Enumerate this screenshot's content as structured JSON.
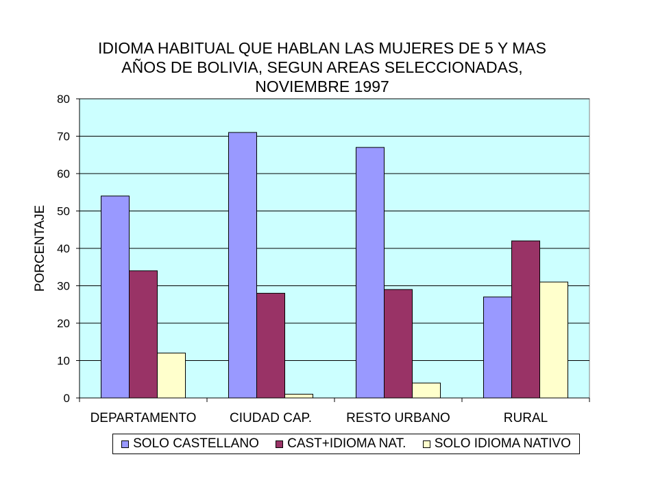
{
  "chart_data": {
    "type": "bar",
    "title": "IDIOMA HABITUAL QUE HABLAN LAS MUJERES DE 5 Y MAS\nAÑOS DE BOLIVIA, SEGUN AREAS SELECCIONADAS,\nNOVIEMBRE 1997",
    "ylabel": "PORCENTAJE",
    "xlabel": "",
    "ylim": [
      0,
      80
    ],
    "yticks": [
      0,
      10,
      20,
      30,
      40,
      50,
      60,
      70,
      80
    ],
    "grid": true,
    "legend_position": "bottom",
    "plot_background": "#ccffff",
    "categories": [
      "DEPARTAMENTO",
      "CIUDAD CAP.",
      "RESTO URBANO",
      "RURAL"
    ],
    "series": [
      {
        "name": "SOLO CASTELLANO",
        "color": "#9999ff",
        "values": [
          54,
          71,
          67,
          27
        ]
      },
      {
        "name": "CAST+IDIOMA NAT.",
        "color": "#993366",
        "values": [
          34,
          28,
          29,
          42
        ]
      },
      {
        "name": "SOLO IDIOMA NATIVO",
        "color": "#ffffcc",
        "values": [
          12,
          1,
          4,
          31
        ]
      }
    ]
  }
}
